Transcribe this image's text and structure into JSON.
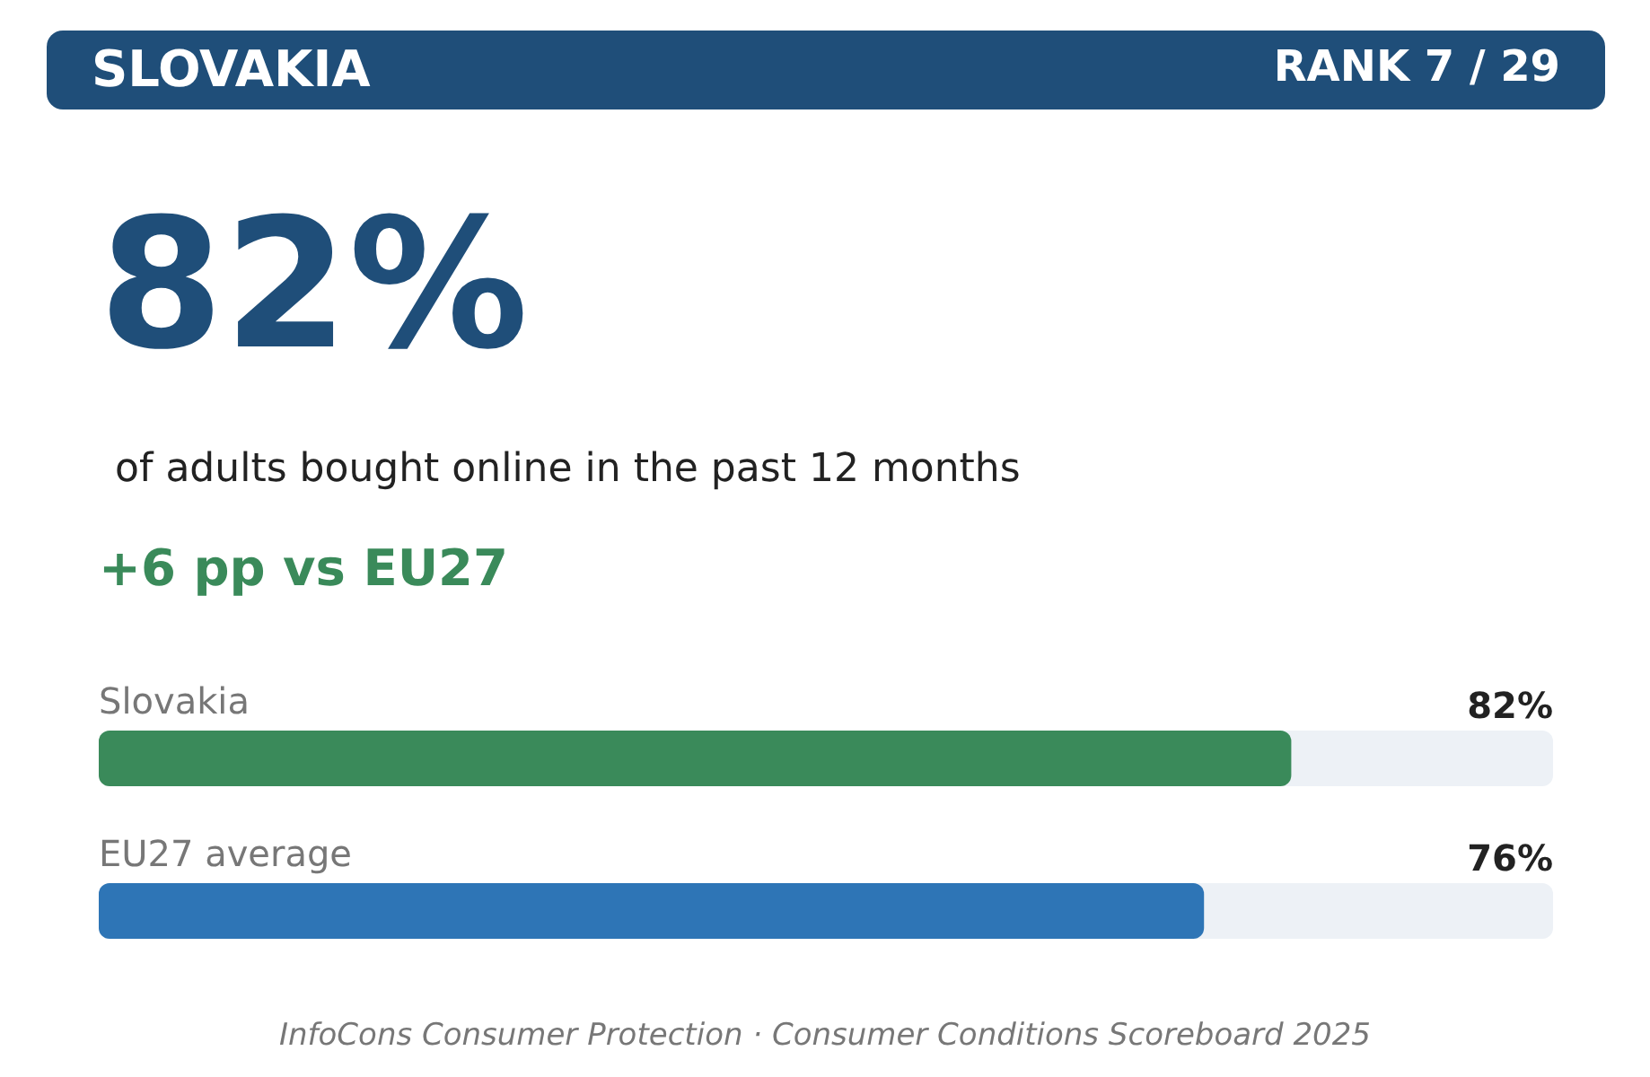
{
  "chart_data": {
    "type": "bar",
    "orientation": "horizontal",
    "title": "SLOVAKIA",
    "subtitle": "RANK 7 / 29",
    "annotations": [
      "82%",
      "of adults bought online in the past 12 months",
      "+6 pp vs EU27",
      "InfoCons Consumer Protection  ·  Consumer Conditions Scoreboard 2025"
    ],
    "categories": [
      "Slovakia",
      "EU27 average"
    ],
    "values": [
      82,
      76
    ],
    "value_labels": [
      "82%",
      "76%"
    ],
    "colors": [
      "#3a8a5a",
      "#2e75b6"
    ],
    "xlim": [
      0,
      100
    ]
  }
}
